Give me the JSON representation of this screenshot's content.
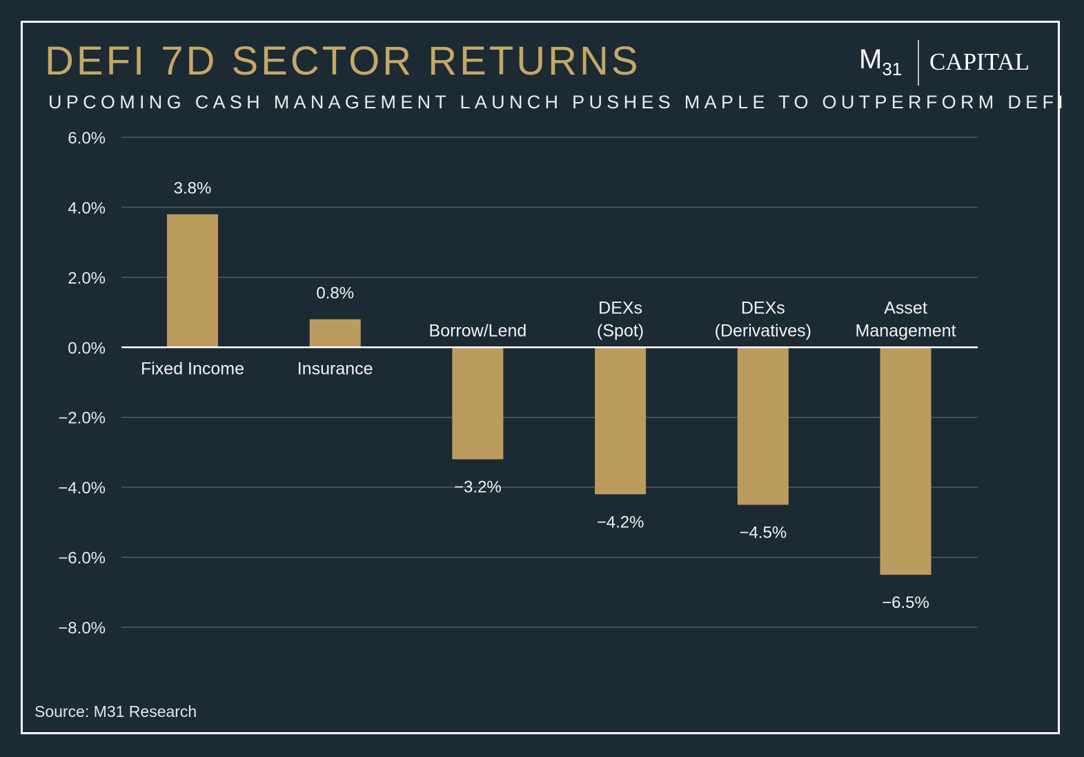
{
  "header": {
    "title": "DEFI 7D SECTOR RETURNS",
    "subtitle": "UPCOMING CASH MANAGEMENT LAUNCH PUSHES MAPLE TO OUTPERFORM DEFI"
  },
  "logo": {
    "mark": "M",
    "mark_sub": "31",
    "wordmark": "CAPITAL"
  },
  "footer": {
    "source": "Source: M31 Research"
  },
  "colors": {
    "background": "#1c2a33",
    "bar": "#bc9c5e",
    "title": "#c6a766",
    "grid": "#4f5c66",
    "zero_line": "#ffffff"
  },
  "chart_data": {
    "type": "bar",
    "title": "DEFI 7D SECTOR RETURNS",
    "xlabel": "",
    "ylabel": "",
    "ylim": [
      -8.0,
      6.0
    ],
    "yticks": [
      6.0,
      4.0,
      2.0,
      0.0,
      -2.0,
      -4.0,
      -6.0,
      -8.0
    ],
    "ytick_labels": [
      "6.0%",
      "4.0%",
      "2.0%",
      "0.0%",
      "−2.0%",
      "−4.0%",
      "−6.0%",
      "−8.0%"
    ],
    "grid": true,
    "categories": [
      [
        "Fixed Income"
      ],
      [
        "Insurance"
      ],
      [
        "Borrow/Lend"
      ],
      [
        "DEXs",
        "(Spot)"
      ],
      [
        "DEXs",
        "(Derivatives)"
      ],
      [
        "Asset",
        "Management"
      ]
    ],
    "values": [
      3.8,
      0.8,
      -3.2,
      -4.2,
      -4.5,
      -6.5
    ],
    "data_labels": [
      "3.8%",
      "0.8%",
      "−3.2%",
      "−4.2%",
      "−4.5%",
      "−6.5%"
    ]
  }
}
